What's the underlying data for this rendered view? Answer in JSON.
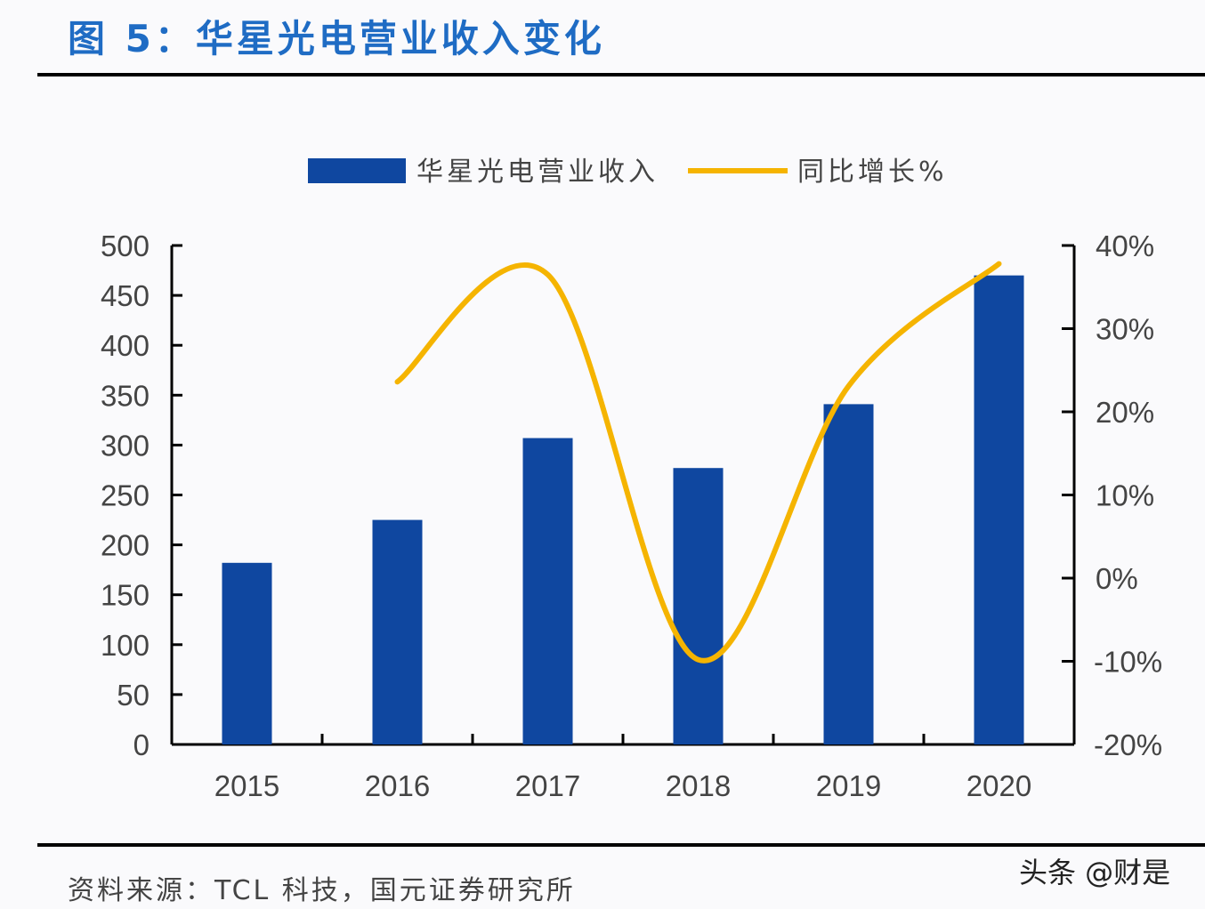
{
  "title": "图 5：华星光电营业收入变化",
  "source": "资料来源：TCL 科技，国元证券研究所",
  "watermark": "头条 @财是",
  "chart_data": {
    "type": "bar+line",
    "categories": [
      "2015",
      "2016",
      "2017",
      "2018",
      "2019",
      "2020"
    ],
    "series": [
      {
        "name": "华星光电营业收入",
        "type": "bar",
        "axis": "left",
        "color": "#0f47a0",
        "values": [
          182,
          225,
          307,
          277,
          341,
          470
        ]
      },
      {
        "name": "同比增长%",
        "type": "line",
        "axis": "right",
        "color": "#f5b400",
        "values": [
          null,
          23.6,
          36.5,
          -9.8,
          23.1,
          37.8
        ]
      }
    ],
    "left_axis": {
      "min": 0,
      "max": 500,
      "ticks": [
        "0",
        "50",
        "100",
        "150",
        "200",
        "250",
        "300",
        "350",
        "400",
        "450",
        "500"
      ]
    },
    "right_axis": {
      "min": -20,
      "max": 40,
      "ticks": [
        "-20%",
        "-10%",
        "0%",
        "10%",
        "20%",
        "30%",
        "40%"
      ]
    },
    "legend_position": "top",
    "grid": false
  }
}
